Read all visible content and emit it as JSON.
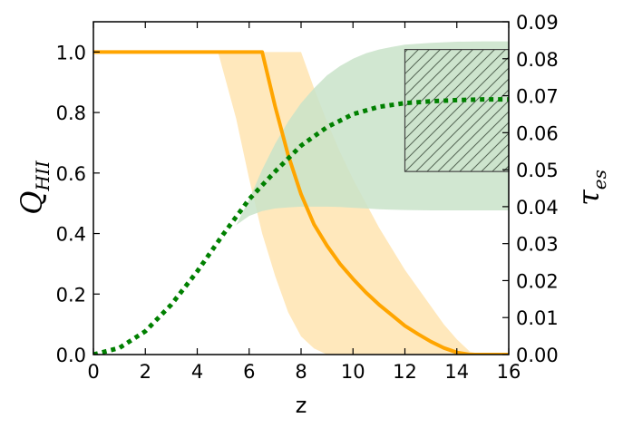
{
  "chart_data": {
    "type": "line",
    "x": {
      "label": "z",
      "lim": [
        0,
        16
      ],
      "ticks": [
        0,
        2,
        4,
        6,
        8,
        10,
        12,
        14,
        16
      ],
      "tick_labels": [
        "0",
        "2",
        "4",
        "6",
        "8",
        "10",
        "12",
        "14",
        "16"
      ]
    },
    "y_left": {
      "label": "Q",
      "label_sub": "HII",
      "lim": [
        0,
        1.1
      ],
      "ticks": [
        0,
        0.2,
        0.4,
        0.6,
        0.8,
        1.0
      ],
      "tick_labels": [
        "0.0",
        "0.2",
        "0.4",
        "0.6",
        "0.8",
        "1.0"
      ]
    },
    "y_right": {
      "label": "τ",
      "label_sub": "es",
      "lim": [
        0,
        0.09
      ],
      "ticks": [
        0,
        0.01,
        0.02,
        0.03,
        0.04,
        0.05,
        0.06,
        0.07,
        0.08,
        0.09
      ],
      "tick_labels": [
        "0.00",
        "0.01",
        "0.02",
        "0.03",
        "0.04",
        "0.05",
        "0.06",
        "0.07",
        "0.08",
        "0.09"
      ]
    },
    "grid": false,
    "legend": "none",
    "series": [
      {
        "axis": "left",
        "style": "solid",
        "color": "#FFA500",
        "x": [
          0,
          6.5,
          7,
          7.5,
          8,
          8.5,
          9,
          9.5,
          10,
          10.5,
          11,
          11.5,
          12,
          12.5,
          13,
          13.5,
          14,
          14.5,
          16
        ],
        "y": [
          1.0,
          1.0,
          0.82,
          0.66,
          0.53,
          0.43,
          0.36,
          0.3,
          0.25,
          0.205,
          0.165,
          0.13,
          0.095,
          0.068,
          0.043,
          0.022,
          0.007,
          0.0,
          0.0
        ]
      },
      {
        "axis": "right",
        "style": "dotted",
        "color": "#008000",
        "x": [
          0,
          1,
          2,
          3,
          4,
          5,
          6,
          7,
          8,
          9,
          10,
          11,
          12,
          13,
          14,
          15,
          16
        ],
        "y": [
          0.0,
          0.0018,
          0.0063,
          0.0135,
          0.0225,
          0.0325,
          0.042,
          0.0495,
          0.0565,
          0.0615,
          0.065,
          0.067,
          0.068,
          0.0685,
          0.0688,
          0.069,
          0.069
        ]
      }
    ],
    "bands": [
      {
        "axis": "left",
        "color": "#FFE4B0",
        "x": [
          4.8,
          5.5,
          6,
          6.5,
          7,
          7.5,
          8,
          8.5,
          9,
          9.5,
          10,
          10.5,
          11,
          11.5,
          12,
          12.5,
          13,
          13.5,
          14,
          14.5,
          15,
          16
        ],
        "upper": [
          1.0,
          1.0,
          1.0,
          1.0,
          1.0,
          1.0,
          1.0,
          0.88,
          0.77,
          0.67,
          0.58,
          0.5,
          0.42,
          0.35,
          0.28,
          0.22,
          0.16,
          0.1,
          0.05,
          0.01,
          0.0,
          0.0
        ],
        "lower": [
          1.0,
          0.78,
          0.58,
          0.4,
          0.26,
          0.14,
          0.06,
          0.02,
          0.0,
          0.0,
          0.0,
          0.0,
          0.0,
          0.0,
          0.0,
          0.0,
          0.0,
          0.0,
          0.0,
          0.0,
          0.0,
          0.0
        ]
      },
      {
        "axis": "right",
        "color": "#C9E3C9",
        "x": [
          5.5,
          6,
          6.5,
          7,
          7.5,
          8,
          8.5,
          9,
          9.5,
          10,
          10.5,
          11,
          11.5,
          12,
          13,
          14,
          15,
          16
        ],
        "upper": [
          0.035,
          0.042,
          0.05,
          0.057,
          0.063,
          0.068,
          0.072,
          0.0755,
          0.078,
          0.08,
          0.0815,
          0.0825,
          0.0832,
          0.0838,
          0.0843,
          0.0846,
          0.0847,
          0.0847
        ],
        "lower": [
          0.035,
          0.0375,
          0.0388,
          0.0395,
          0.0398,
          0.04,
          0.04,
          0.04,
          0.0399,
          0.0397,
          0.0395,
          0.0393,
          0.0392,
          0.0391,
          0.039,
          0.039,
          0.039,
          0.039
        ]
      }
    ],
    "hatched_box": {
      "axis": "right",
      "x": [
        12,
        16
      ],
      "y": [
        0.0495,
        0.0825
      ],
      "fill": "#C9E3C9",
      "edge": "#444444"
    }
  }
}
